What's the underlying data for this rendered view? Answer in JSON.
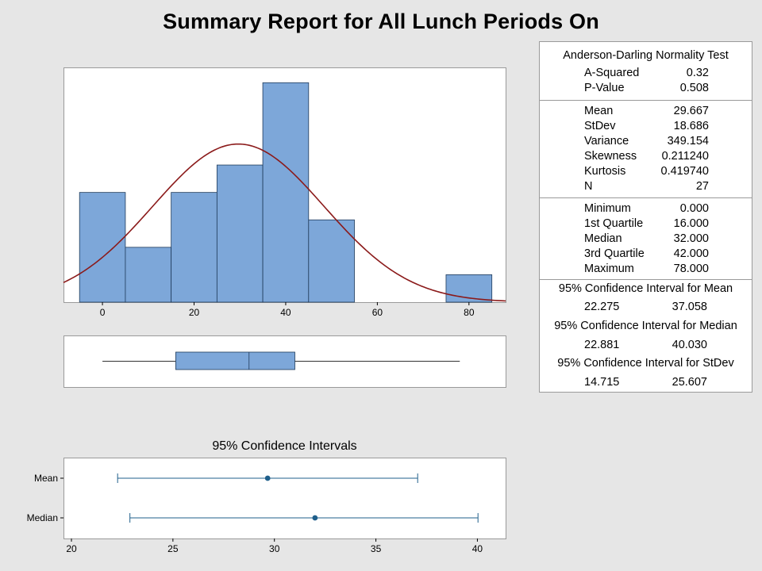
{
  "title": "Summary Report for All Lunch Periods On",
  "colors": {
    "bar_fill": "#7da7d9",
    "bar_edge": "#1f3a5a",
    "curve": "#8b1a1a",
    "ci": "#1f5f8b",
    "panel": "#ffffff"
  },
  "stats": {
    "normality": {
      "header": "Anderson-Darling Normality Test",
      "rows": [
        {
          "label": "A-Squared",
          "value": "0.32"
        },
        {
          "label": "P-Value",
          "value": "0.508"
        }
      ]
    },
    "moments": [
      {
        "label": "Mean",
        "value": "29.667"
      },
      {
        "label": "StDev",
        "value": "18.686"
      },
      {
        "label": "Variance",
        "value": "349.154"
      },
      {
        "label": "Skewness",
        "value": "0.211240"
      },
      {
        "label": "Kurtosis",
        "value": "0.419740"
      },
      {
        "label": "N",
        "value": "27"
      }
    ],
    "quartiles": [
      {
        "label": "Minimum",
        "value": "0.000"
      },
      {
        "label": "1st Quartile",
        "value": "16.000"
      },
      {
        "label": "Median",
        "value": "32.000"
      },
      {
        "label": "3rd Quartile",
        "value": "42.000"
      },
      {
        "label": "Maximum",
        "value": "78.000"
      }
    ],
    "ci_mean": {
      "header": "95% Confidence Interval for Mean",
      "lower": "22.275",
      "upper": "37.058"
    },
    "ci_median": {
      "header": "95% Confidence Interval for Median",
      "lower": "22.881",
      "upper": "40.030"
    },
    "ci_stdev": {
      "header": "95% Confidence Interval for StDev",
      "lower": "14.715",
      "upper": "25.607"
    }
  },
  "chart_data": [
    {
      "type": "bar",
      "bins": [
        {
          "low": -5,
          "high": 5,
          "count": 4
        },
        {
          "low": 5,
          "high": 15,
          "count": 2
        },
        {
          "low": 15,
          "high": 25,
          "count": 4
        },
        {
          "low": 25,
          "high": 35,
          "count": 5
        },
        {
          "low": 35,
          "high": 45,
          "count": 8
        },
        {
          "low": 45,
          "high": 55,
          "count": 3
        },
        {
          "low": 55,
          "high": 65,
          "count": 0
        },
        {
          "low": 65,
          "high": 75,
          "count": 0
        },
        {
          "low": 75,
          "high": 85,
          "count": 1
        }
      ],
      "fit": {
        "distribution": "normal",
        "mean": 29.667,
        "stdev": 18.686,
        "n": 27,
        "bin_width": 10
      },
      "xlim": [
        -8.5,
        88
      ],
      "ylim": [
        0,
        8.5
      ],
      "xticks": [
        0,
        20,
        40,
        60,
        80
      ],
      "grid": false
    },
    {
      "type": "boxplot",
      "whisker_low": 0,
      "q1": 16,
      "median": 32,
      "q3": 42,
      "whisker_high": 78,
      "xlim": [
        -8.5,
        88
      ]
    },
    {
      "type": "errorbar",
      "title": "95% Confidence Intervals",
      "categories": [
        "Mean",
        "Median"
      ],
      "points": [
        {
          "label": "Mean",
          "estimate": 29.667,
          "lower": 22.275,
          "upper": 37.058
        },
        {
          "label": "Median",
          "estimate": 32.0,
          "lower": 22.881,
          "upper": 40.03
        }
      ],
      "xlim": [
        20,
        41
      ],
      "xticks": [
        20,
        25,
        30,
        35,
        40
      ]
    }
  ]
}
